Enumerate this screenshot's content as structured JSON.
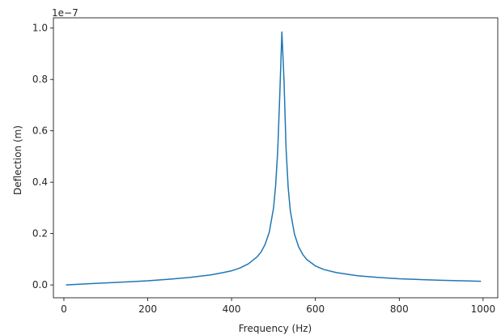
{
  "chart_data": {
    "type": "line",
    "xlabel": "Frequency (Hz)",
    "ylabel": "Deflection (m)",
    "y_offset_label": "1e−7",
    "xlim": [
      -25,
      1035
    ],
    "ylim": [
      -0.05,
      1.04
    ],
    "y_scale_factor": 1e-07,
    "x_ticks": [
      0,
      200,
      400,
      600,
      800,
      1000
    ],
    "x_tick_labels": [
      "0",
      "200",
      "400",
      "600",
      "800",
      "1000"
    ],
    "y_ticks": [
      0.0,
      0.2,
      0.4,
      0.6,
      0.8,
      1.0
    ],
    "y_tick_labels": [
      "0.0",
      "0.2",
      "0.4",
      "0.6",
      "0.8",
      "1.0"
    ],
    "grid": false,
    "series": [
      {
        "color": "#1f77b4",
        "x": [
          5,
          50,
          100,
          150,
          200,
          250,
          300,
          350,
          380,
          400,
          420,
          440,
          460,
          470,
          480,
          490,
          500,
          505,
          510,
          515,
          520,
          525,
          530,
          535,
          540,
          550,
          560,
          570,
          580,
          600,
          620,
          650,
          700,
          750,
          800,
          850,
          900,
          950,
          995
        ],
        "y": [
          0.0,
          0.004,
          0.008,
          0.012,
          0.016,
          0.022,
          0.029,
          0.039,
          0.048,
          0.055,
          0.066,
          0.082,
          0.108,
          0.127,
          0.158,
          0.206,
          0.298,
          0.385,
          0.52,
          0.74,
          0.985,
          0.8,
          0.53,
          0.38,
          0.29,
          0.198,
          0.148,
          0.118,
          0.098,
          0.074,
          0.06,
          0.048,
          0.036,
          0.029,
          0.024,
          0.021,
          0.018,
          0.016,
          0.014
        ]
      }
    ]
  }
}
